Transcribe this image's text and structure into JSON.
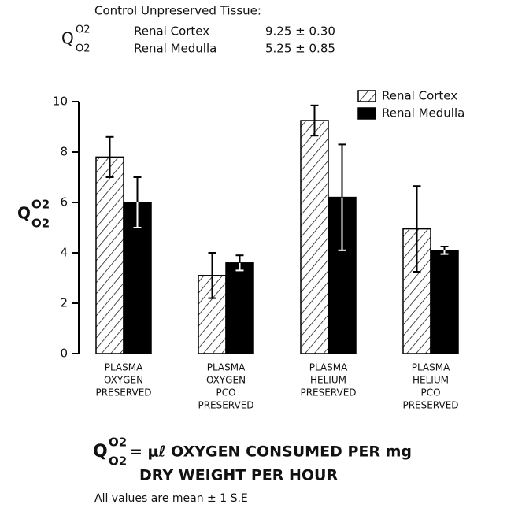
{
  "header": {
    "title": "Control Unpreserved Tissue:",
    "rows": [
      {
        "label": "Renal Cortex",
        "value": "9.25 ± 0.30"
      },
      {
        "label": "Renal Medulla",
        "value": "5.25 ± 0.85"
      }
    ]
  },
  "symbol": {
    "base": "Q",
    "sup": "O2",
    "sub": "O2"
  },
  "chart_data": {
    "type": "bar",
    "categories": [
      [
        "PLASMA",
        "OXYGEN",
        "PRESERVED"
      ],
      [
        "PLASMA",
        "OXYGEN",
        "PCO",
        "PRESERVED"
      ],
      [
        "PLASMA",
        "HELIUM",
        "PRESERVED"
      ],
      [
        "PLASMA",
        "HELIUM",
        "PCO",
        "PRESERVED"
      ]
    ],
    "series": [
      {
        "name": "Renal Cortex",
        "color": "#000000",
        "pattern": "hatch",
        "values": [
          7.8,
          3.1,
          9.25,
          4.95
        ],
        "errors": [
          0.8,
          0.9,
          0.6,
          1.7
        ]
      },
      {
        "name": "Renal Medulla",
        "color": "#000000",
        "pattern": "solid",
        "values": [
          6.0,
          3.6,
          6.2,
          4.1
        ],
        "errors": [
          1.0,
          0.3,
          2.1,
          0.15
        ]
      }
    ],
    "ylim": [
      0,
      10
    ],
    "yticks": [
      0,
      2,
      4,
      6,
      8,
      10
    ],
    "legend": "top-right"
  },
  "footer": {
    "definition": [
      "= μℓ OXYGEN CONSUMED PER mg",
      "DRY WEIGHT PER HOUR"
    ],
    "note": "All values are mean ± 1 S.E"
  }
}
